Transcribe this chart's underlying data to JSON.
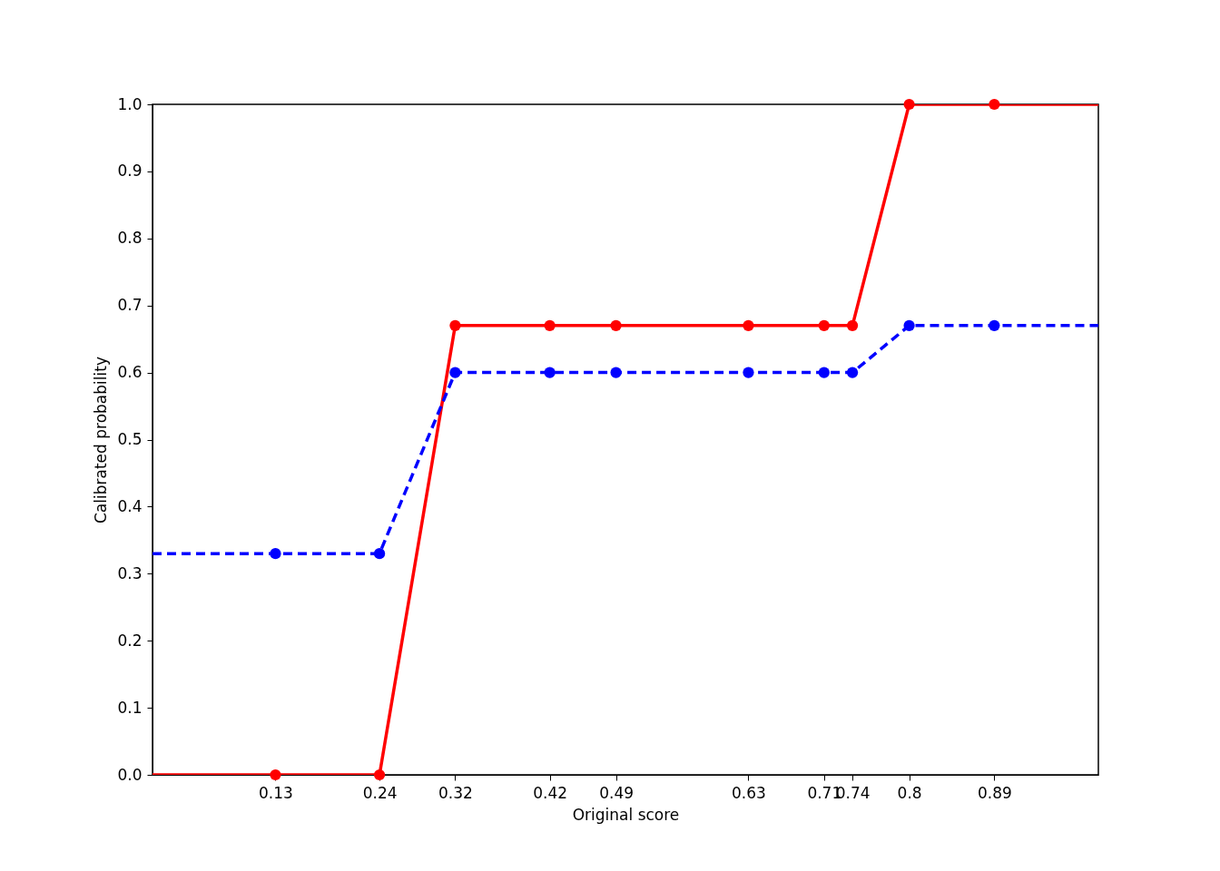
{
  "chart_data": {
    "type": "line",
    "xlabel": "Original score",
    "ylabel": "Calibrated probability",
    "xlim": [
      0,
      1
    ],
    "ylim": [
      0,
      1
    ],
    "xticks": [
      0.13,
      0.24,
      0.32,
      0.42,
      0.49,
      0.63,
      0.71,
      0.74,
      0.8,
      0.89
    ],
    "yticks": [
      {
        "value": 0,
        "label": "0.0"
      },
      {
        "value": 0.1,
        "label": "0.1"
      },
      {
        "value": 0.2,
        "label": "0.2"
      },
      {
        "value": 0.3,
        "label": "0.3"
      },
      {
        "value": 0.4,
        "label": "0.4"
      },
      {
        "value": 0.5,
        "label": "0.5"
      },
      {
        "value": 0.6,
        "label": "0.6"
      },
      {
        "value": 0.7,
        "label": "0.7"
      },
      {
        "value": 0.8,
        "label": "0.8"
      },
      {
        "value": 0.9,
        "label": "0.9"
      },
      {
        "value": 1,
        "label": "1.0"
      }
    ],
    "grid": false,
    "series": [
      {
        "color": "#ff0000",
        "line_style": "solid",
        "marker": "none",
        "x": [
          0,
          0.13,
          0.24,
          0.32,
          0.42,
          0.49,
          0.63,
          0.71,
          0.74,
          0.8,
          0.89,
          1
        ],
        "values": [
          0,
          0,
          0,
          0.67,
          0.67,
          0.67,
          0.67,
          0.67,
          0.67,
          1,
          1,
          1
        ]
      },
      {
        "color": "#0000ff",
        "line_style": "dashed",
        "marker": "none",
        "x": [
          0,
          0.13,
          0.24,
          0.32,
          0.42,
          0.49,
          0.63,
          0.71,
          0.74,
          0.8,
          0.89,
          1
        ],
        "values": [
          0.33,
          0.33,
          0.33,
          0.6,
          0.6,
          0.6,
          0.6,
          0.6,
          0.6,
          0.67,
          0.67,
          0.67
        ]
      },
      {
        "type": "scatter",
        "color": "#ff0000",
        "marker": "circle",
        "x": [
          0.13,
          0.24,
          0.32,
          0.42,
          0.49,
          0.63,
          0.71,
          0.74,
          0.8,
          0.89
        ],
        "values": [
          0,
          0,
          0.67,
          0.67,
          0.67,
          0.67,
          0.67,
          0.67,
          1,
          1
        ]
      },
      {
        "type": "scatter",
        "color": "#0000ff",
        "marker": "circle",
        "x": [
          0.13,
          0.24,
          0.32,
          0.42,
          0.49,
          0.63,
          0.71,
          0.74,
          0.8,
          0.89
        ],
        "values": [
          0.33,
          0.33,
          0.6,
          0.6,
          0.6,
          0.6,
          0.6,
          0.6,
          0.67,
          0.67
        ]
      }
    ]
  }
}
